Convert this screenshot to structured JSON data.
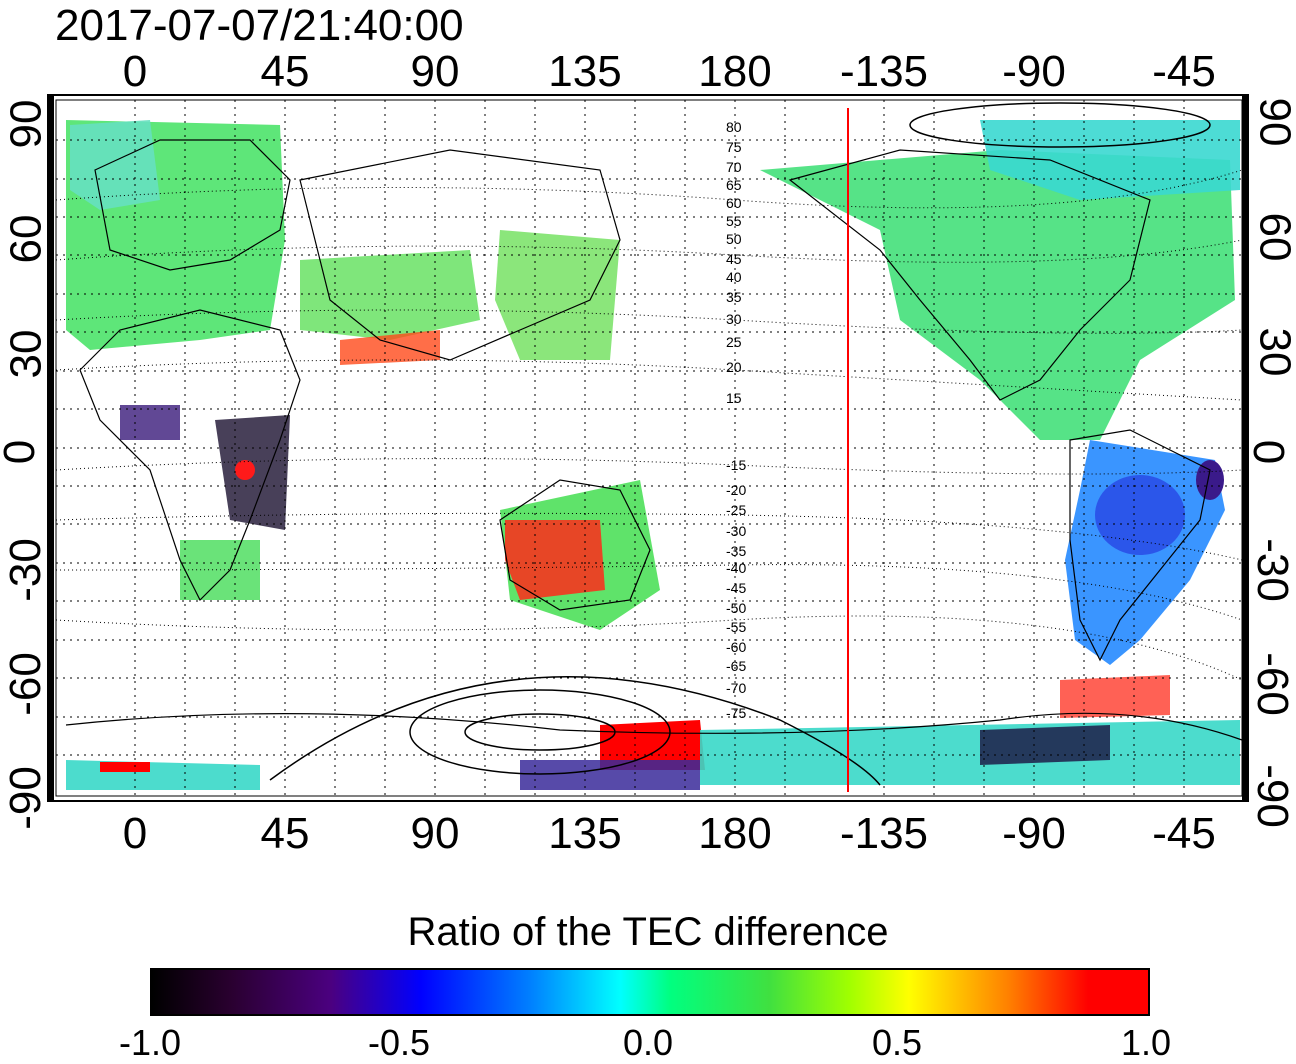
{
  "timestamp": "2017-07-07/21:40:00",
  "longitude_ticks_top": [
    "0",
    "45",
    "90",
    "135",
    "180",
    "-135",
    "-90",
    "-45"
  ],
  "longitude_ticks_bottom": [
    "0",
    "45",
    "90",
    "135",
    "180",
    "-135",
    "-90",
    "-45"
  ],
  "latitude_ticks_left": [
    "90",
    "60",
    "30",
    "0",
    "-30",
    "-60",
    "-90"
  ],
  "latitude_ticks_right": [
    "90",
    "60",
    "30",
    "0",
    "-30",
    "-60",
    "-90"
  ],
  "magnetic_latitude_labels": [
    "80",
    "75",
    "70",
    "65",
    "60",
    "55",
    "50",
    "45",
    "40",
    "35",
    "30",
    "25",
    "20",
    "15",
    "-15",
    "-20",
    "-25",
    "-30",
    "-35",
    "-40",
    "-45",
    "-50",
    "-55",
    "-60",
    "-65",
    "-70",
    "-75"
  ],
  "colorbar": {
    "title": "Ratio of the TEC difference",
    "ticks": [
      "-1.0",
      "-0.5",
      "0.0",
      "0.5",
      "1.0"
    ],
    "min": -1.0,
    "max": 1.0
  },
  "colors": {
    "terminator_line": "#ff0000",
    "low": "#000000",
    "mid": "#00ff80",
    "high": "#ff0000"
  },
  "terminator_longitude": -140
}
